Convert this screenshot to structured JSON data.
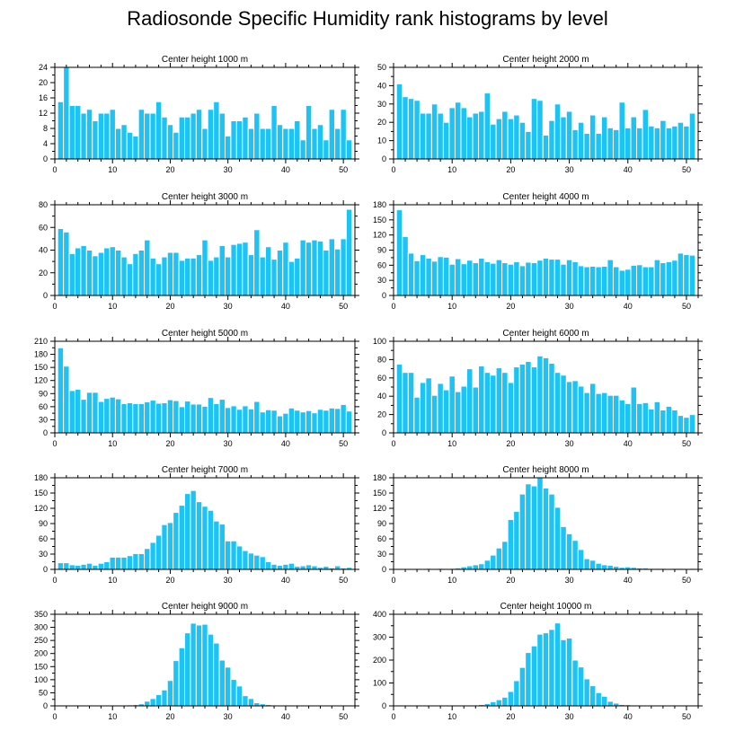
{
  "page_title": "Radiosonde Specific Humidity rank histograms by level",
  "style": {
    "bar_color": "#1ec3f5",
    "bar_edge": "#ffffff",
    "axis_color": "#000000"
  },
  "chart_data": [
    {
      "type": "bar",
      "title": "Center height 1000 m",
      "x": [
        1,
        2,
        3,
        4,
        5,
        6,
        7,
        8,
        9,
        10,
        11,
        12,
        13,
        14,
        15,
        16,
        17,
        18,
        19,
        20,
        21,
        22,
        23,
        24,
        25,
        26,
        27,
        28,
        29,
        30,
        31,
        32,
        33,
        34,
        35,
        36,
        37,
        38,
        39,
        40,
        41,
        42,
        43,
        44,
        45,
        46,
        47,
        48,
        49,
        50,
        51
      ],
      "values": [
        15,
        24,
        14,
        14,
        12,
        13,
        10,
        12,
        12,
        13,
        8,
        9,
        7,
        6,
        13,
        12,
        12,
        15,
        11,
        9,
        7,
        11,
        11,
        12,
        13,
        8,
        13,
        15,
        12,
        6,
        10,
        10,
        11,
        8,
        12,
        8,
        8,
        14,
        9,
        8,
        8,
        10,
        5,
        14,
        8,
        9,
        5,
        13,
        8,
        13,
        5
      ],
      "xlim": [
        0,
        52
      ],
      "ylim": [
        0,
        24
      ],
      "xticks": [
        0,
        10,
        20,
        30,
        40,
        50
      ],
      "yticks": [
        0,
        4,
        8,
        12,
        16,
        20,
        24
      ]
    },
    {
      "type": "bar",
      "title": "Center height 2000 m",
      "x": [
        1,
        2,
        3,
        4,
        5,
        6,
        7,
        8,
        9,
        10,
        11,
        12,
        13,
        14,
        15,
        16,
        17,
        18,
        19,
        20,
        21,
        22,
        23,
        24,
        25,
        26,
        27,
        28,
        29,
        30,
        31,
        32,
        33,
        34,
        35,
        36,
        37,
        38,
        39,
        40,
        41,
        42,
        43,
        44,
        45,
        46,
        47,
        48,
        49,
        50,
        51
      ],
      "values": [
        41,
        34,
        33,
        32,
        25,
        25,
        30,
        25,
        20,
        28,
        31,
        28,
        23,
        25,
        26,
        36,
        19,
        22,
        26,
        22,
        24,
        20,
        15,
        33,
        32,
        13,
        21,
        30,
        23,
        26,
        16,
        20,
        14,
        24,
        14,
        23,
        17,
        16,
        31,
        17,
        23,
        17,
        27,
        18,
        17,
        21,
        17,
        18,
        20,
        18,
        25
      ],
      "xlim": [
        0,
        52
      ],
      "ylim": [
        0,
        50
      ],
      "xticks": [
        0,
        10,
        20,
        30,
        40,
        50
      ],
      "yticks": [
        0,
        10,
        20,
        30,
        40,
        50
      ]
    },
    {
      "type": "bar",
      "title": "Center height 3000 m",
      "x": [
        1,
        2,
        3,
        4,
        5,
        6,
        7,
        8,
        9,
        10,
        11,
        12,
        13,
        14,
        15,
        16,
        17,
        18,
        19,
        20,
        21,
        22,
        23,
        24,
        25,
        26,
        27,
        28,
        29,
        30,
        31,
        32,
        33,
        34,
        35,
        36,
        37,
        38,
        39,
        40,
        41,
        42,
        43,
        44,
        45,
        46,
        47,
        48,
        49,
        50,
        51
      ],
      "values": [
        59,
        56,
        37,
        42,
        44,
        40,
        35,
        38,
        42,
        43,
        40,
        34,
        28,
        37,
        40,
        49,
        33,
        28,
        34,
        38,
        38,
        31,
        33,
        33,
        36,
        49,
        31,
        34,
        44,
        34,
        45,
        46,
        47,
        36,
        58,
        34,
        43,
        32,
        40,
        47,
        30,
        33,
        49,
        47,
        49,
        48,
        40,
        50,
        41,
        50,
        76
      ],
      "xlim": [
        0,
        52
      ],
      "ylim": [
        0,
        80
      ],
      "xticks": [
        0,
        10,
        20,
        30,
        40,
        50
      ],
      "yticks": [
        0,
        20,
        40,
        60,
        80
      ]
    },
    {
      "type": "bar",
      "title": "Center height 4000 m",
      "x": [
        1,
        2,
        3,
        4,
        5,
        6,
        7,
        8,
        9,
        10,
        11,
        12,
        13,
        14,
        15,
        16,
        17,
        18,
        19,
        20,
        21,
        22,
        23,
        24,
        25,
        26,
        27,
        28,
        29,
        30,
        31,
        32,
        33,
        34,
        35,
        36,
        37,
        38,
        39,
        40,
        41,
        42,
        43,
        44,
        45,
        46,
        47,
        48,
        49,
        50,
        51
      ],
      "values": [
        170,
        117,
        84,
        69,
        81,
        74,
        68,
        77,
        76,
        62,
        73,
        63,
        70,
        65,
        74,
        67,
        64,
        71,
        65,
        62,
        67,
        59,
        66,
        65,
        70,
        74,
        72,
        72,
        62,
        71,
        67,
        59,
        57,
        58,
        57,
        58,
        71,
        57,
        50,
        52,
        60,
        61,
        57,
        57,
        71,
        65,
        67,
        70,
        84,
        81,
        80
      ],
      "xlim": [
        0,
        52
      ],
      "ylim": [
        0,
        180
      ],
      "xticks": [
        0,
        10,
        20,
        30,
        40,
        50
      ],
      "yticks": [
        0,
        30,
        60,
        90,
        120,
        150,
        180
      ]
    },
    {
      "type": "bar",
      "title": "Center height 5000 m",
      "x": [
        1,
        2,
        3,
        4,
        5,
        6,
        7,
        8,
        9,
        10,
        11,
        12,
        13,
        14,
        15,
        16,
        17,
        18,
        19,
        20,
        21,
        22,
        23,
        24,
        25,
        26,
        27,
        28,
        29,
        30,
        31,
        32,
        33,
        34,
        35,
        36,
        37,
        38,
        39,
        40,
        41,
        42,
        43,
        44,
        45,
        46,
        47,
        48,
        49,
        50,
        51
      ],
      "values": [
        195,
        153,
        97,
        100,
        77,
        93,
        93,
        72,
        79,
        82,
        78,
        67,
        69,
        67,
        67,
        71,
        75,
        68,
        69,
        76,
        74,
        60,
        73,
        66,
        66,
        61,
        81,
        67,
        77,
        58,
        62,
        54,
        62,
        55,
        72,
        48,
        53,
        52,
        39,
        45,
        57,
        52,
        48,
        51,
        46,
        54,
        52,
        57,
        56,
        65,
        50
      ],
      "xlim": [
        0,
        52
      ],
      "ylim": [
        0,
        210
      ],
      "xticks": [
        0,
        10,
        20,
        30,
        40,
        50
      ],
      "yticks": [
        0,
        30,
        60,
        90,
        120,
        150,
        180,
        210
      ]
    },
    {
      "type": "bar",
      "title": "Center height 6000 m",
      "x": [
        1,
        2,
        3,
        4,
        5,
        6,
        7,
        8,
        9,
        10,
        11,
        12,
        13,
        14,
        15,
        16,
        17,
        18,
        19,
        20,
        21,
        22,
        23,
        24,
        25,
        26,
        27,
        28,
        29,
        30,
        31,
        32,
        33,
        34,
        35,
        36,
        37,
        38,
        39,
        40,
        41,
        42,
        43,
        44,
        45,
        46,
        47,
        48,
        49,
        50,
        51
      ],
      "values": [
        75,
        66,
        66,
        39,
        55,
        60,
        41,
        54,
        47,
        62,
        45,
        51,
        70,
        50,
        73,
        66,
        63,
        71,
        66,
        55,
        72,
        75,
        78,
        72,
        84,
        82,
        76,
        66,
        63,
        56,
        57,
        51,
        44,
        54,
        43,
        44,
        41,
        41,
        36,
        32,
        50,
        32,
        33,
        26,
        34,
        25,
        29,
        25,
        19,
        17,
        20
      ],
      "xlim": [
        0,
        52
      ],
      "ylim": [
        0,
        100
      ],
      "xticks": [
        0,
        10,
        20,
        30,
        40,
        50
      ],
      "yticks": [
        0,
        20,
        40,
        60,
        80,
        100
      ]
    },
    {
      "type": "bar",
      "title": "Center height 7000 m",
      "x": [
        1,
        2,
        3,
        4,
        5,
        6,
        7,
        8,
        9,
        10,
        11,
        12,
        13,
        14,
        15,
        16,
        17,
        18,
        19,
        20,
        21,
        22,
        23,
        24,
        25,
        26,
        27,
        28,
        29,
        30,
        31,
        32,
        33,
        34,
        35,
        36,
        37,
        38,
        39,
        40,
        41,
        42,
        43,
        44,
        45,
        46,
        47,
        48,
        49,
        50,
        51
      ],
      "values": [
        13,
        13,
        9,
        8,
        10,
        12,
        8,
        12,
        15,
        24,
        24,
        24,
        27,
        31,
        31,
        41,
        53,
        67,
        88,
        92,
        112,
        126,
        149,
        155,
        133,
        124,
        116,
        95,
        89,
        56,
        56,
        46,
        37,
        32,
        28,
        25,
        15,
        10,
        8,
        10,
        12,
        6,
        7,
        9,
        7,
        4,
        6,
        3,
        7,
        3,
        4
      ],
      "xlim": [
        0,
        52
      ],
      "ylim": [
        0,
        180
      ],
      "xticks": [
        0,
        10,
        20,
        30,
        40,
        50
      ],
      "yticks": [
        0,
        30,
        60,
        90,
        120,
        150,
        180
      ]
    },
    {
      "type": "bar",
      "title": "Center height 8000 m",
      "x": [
        1,
        2,
        3,
        4,
        5,
        6,
        7,
        8,
        9,
        10,
        11,
        12,
        13,
        14,
        15,
        16,
        17,
        18,
        19,
        20,
        21,
        22,
        23,
        24,
        25,
        26,
        27,
        28,
        29,
        30,
        31,
        32,
        33,
        34,
        35,
        36,
        37,
        38,
        39,
        40,
        41,
        42,
        43,
        44,
        45,
        46,
        47,
        48,
        49,
        50,
        51
      ],
      "values": [
        0,
        0,
        1,
        1,
        1,
        2,
        1,
        2,
        1,
        2,
        3,
        5,
        7,
        9,
        11,
        18,
        28,
        42,
        55,
        98,
        114,
        148,
        168,
        164,
        181,
        160,
        148,
        122,
        84,
        70,
        57,
        39,
        21,
        18,
        12,
        9,
        8,
        6,
        4,
        5,
        4,
        3,
        3,
        2,
        2,
        2,
        1,
        2,
        2,
        1,
        2
      ],
      "xlim": [
        0,
        52
      ],
      "ylim": [
        0,
        180
      ],
      "xticks": [
        0,
        10,
        20,
        30,
        40,
        50
      ],
      "yticks": [
        0,
        30,
        60,
        90,
        120,
        150,
        180
      ]
    },
    {
      "type": "bar",
      "title": "Center height 9000 m",
      "x": [
        1,
        2,
        3,
        4,
        5,
        6,
        7,
        8,
        9,
        10,
        11,
        12,
        13,
        14,
        15,
        16,
        17,
        18,
        19,
        20,
        21,
        22,
        23,
        24,
        25,
        26,
        27,
        28,
        29,
        30,
        31,
        32,
        33,
        34,
        35,
        36,
        37,
        38,
        39,
        40,
        41,
        42,
        43,
        44,
        45,
        46,
        47,
        48,
        49,
        50,
        51
      ],
      "values": [
        0,
        0,
        0,
        0,
        0,
        0,
        0,
        0,
        0,
        1,
        2,
        2,
        4,
        5,
        8,
        18,
        28,
        43,
        61,
        97,
        173,
        222,
        279,
        316,
        309,
        312,
        274,
        240,
        175,
        148,
        101,
        76,
        39,
        28,
        12,
        8,
        5,
        3,
        2,
        1,
        2,
        1,
        1,
        0,
        0,
        0,
        0,
        0,
        0,
        0,
        0
      ],
      "xlim": [
        0,
        52
      ],
      "ylim": [
        0,
        350
      ],
      "xticks": [
        0,
        10,
        20,
        30,
        40,
        50
      ],
      "yticks": [
        0,
        50,
        100,
        150,
        200,
        250,
        300,
        350
      ]
    },
    {
      "type": "bar",
      "title": "Center height 10000 m",
      "x": [
        1,
        2,
        3,
        4,
        5,
        6,
        7,
        8,
        9,
        10,
        11,
        12,
        13,
        14,
        15,
        16,
        17,
        18,
        19,
        20,
        21,
        22,
        23,
        24,
        25,
        26,
        27,
        28,
        29,
        30,
        31,
        32,
        33,
        34,
        35,
        36,
        37,
        38,
        39,
        40,
        41,
        42,
        43,
        44,
        45,
        46,
        47,
        48,
        49,
        50,
        51
      ],
      "values": [
        0,
        0,
        0,
        0,
        0,
        0,
        0,
        0,
        0,
        0,
        0,
        1,
        2,
        4,
        6,
        10,
        18,
        27,
        38,
        63,
        110,
        168,
        233,
        262,
        313,
        319,
        334,
        362,
        289,
        296,
        200,
        170,
        118,
        88,
        58,
        42,
        20,
        12,
        6,
        5,
        4,
        2,
        1,
        1,
        0,
        0,
        0,
        0,
        0,
        0,
        0
      ],
      "xlim": [
        0,
        52
      ],
      "ylim": [
        0,
        400
      ],
      "xticks": [
        0,
        10,
        20,
        30,
        40,
        50
      ],
      "yticks": [
        0,
        100,
        200,
        300,
        400
      ]
    }
  ]
}
